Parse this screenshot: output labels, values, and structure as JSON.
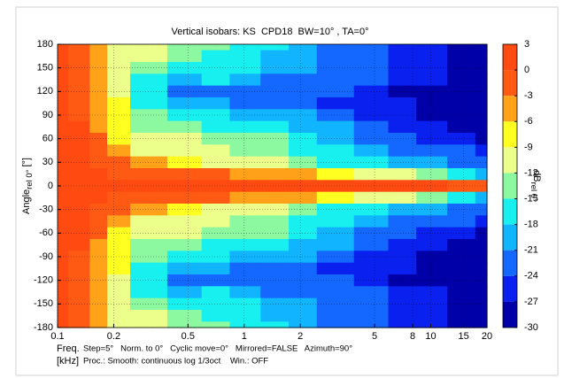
{
  "chart_data": {
    "type": "contour",
    "title": "Vertical isobars: KS  CPD18  BW=10° , TA=0°",
    "y_label": {
      "main": "Angle",
      "sub": "rel 0°",
      "unit": " [°]"
    },
    "colorbar_label": {
      "main": "dB",
      "sub": "rel 0°"
    },
    "x_label": {
      "line1": "Freq.",
      "line2": "[kHz]"
    },
    "notes": {
      "line1": "Step=5°   Norm. to 0°   Cyclic move=0°   Mirrored=FALSE   Azimuth=90°",
      "line2": "Proc.: Smooth: continuous log 1/3oct    Win.: OFF"
    },
    "x_log": true,
    "xlim": [
      0.1,
      20
    ],
    "xticks": [
      0.1,
      0.2,
      0.5,
      1,
      2,
      5,
      8,
      10,
      15,
      20
    ],
    "ylim": [
      -180,
      180
    ],
    "yticks": [
      180,
      150,
      120,
      90,
      60,
      30,
      0,
      -30,
      -60,
      -90,
      -120,
      -150,
      -180
    ],
    "grid": true,
    "clim": [
      -30,
      3
    ],
    "cticks": [
      3,
      0,
      -3,
      -6,
      -9,
      -12,
      -15,
      -18,
      -21,
      -24,
      -27,
      -30
    ],
    "colors": [
      "#ff4a12",
      "#ff5a14",
      "#ffa21a",
      "#ffff20",
      "#ecff8a",
      "#8cf8a0",
      "#18f0f0",
      "#10b4ff",
      "#1468ff",
      "#0a20ee",
      "#0000a8"
    ],
    "x": [
      0.1,
      0.13,
      0.17,
      0.2,
      0.3,
      0.5,
      0.7,
      1,
      1.5,
      2,
      3,
      5,
      7,
      10,
      15,
      20
    ],
    "y": [
      180,
      165,
      150,
      135,
      120,
      105,
      90,
      75,
      60,
      45,
      30,
      15,
      0,
      -15,
      -30,
      -45,
      -60,
      -75,
      -90,
      -105,
      -120,
      -135,
      -150,
      -165,
      -180
    ],
    "z": [
      [
        0,
        -1,
        -4,
        -10,
        -11,
        -13,
        -15,
        -16,
        -18,
        -20,
        -22,
        -24,
        -26,
        -27,
        -28,
        -29
      ],
      [
        0,
        -1,
        -4,
        -10,
        -12,
        -14,
        -16,
        -17,
        -19,
        -20,
        -22,
        -23,
        -26,
        -27,
        -28,
        -29
      ],
      [
        0,
        -1,
        -4,
        -10,
        -13,
        -16,
        -17,
        -18,
        -20,
        -21,
        -22,
        -24,
        -25,
        -27,
        -28,
        -29
      ],
      [
        0,
        -1,
        -4,
        -10,
        -17,
        -19,
        -18,
        -20,
        -22,
        -23,
        -22,
        -24,
        -27,
        -27,
        -29,
        -29
      ],
      [
        0,
        -1,
        -4,
        -10,
        -18,
        -22,
        -23,
        -22,
        -24,
        -24,
        -24,
        -26,
        -28,
        -28,
        -28,
        -29
      ],
      [
        0,
        -1,
        -4,
        -9,
        -17,
        -20,
        -20,
        -22,
        -22,
        -23,
        -25,
        -26,
        -27,
        -28,
        -29,
        -29
      ],
      [
        0,
        -1,
        -4,
        -9,
        -15,
        -17,
        -18,
        -19,
        -20,
        -21,
        -23,
        -25,
        -27,
        -28,
        -29,
        -29
      ],
      [
        0,
        0,
        -4,
        -9,
        -13,
        -14,
        -16,
        -16,
        -18,
        -19,
        -21,
        -24,
        -26,
        -27,
        -28,
        -29
      ],
      [
        0,
        0,
        -3,
        -8,
        -12,
        -11,
        -13,
        -14,
        -15,
        -17,
        -19,
        -22,
        -24,
        -25,
        -27,
        -28
      ],
      [
        0,
        0,
        -2,
        -6,
        -10,
        -12,
        -11,
        -13,
        -15,
        -17,
        -18,
        -20,
        -22,
        -22,
        -24,
        -26
      ],
      [
        0,
        0,
        -1,
        -3,
        -6,
        -9,
        -10,
        -11,
        -12,
        -14,
        -16,
        -18,
        -19,
        -20,
        -22,
        -24
      ],
      [
        0,
        0,
        0,
        -1,
        -2,
        -3,
        -3,
        -4,
        -5,
        -6,
        -8,
        -10,
        -12,
        -14,
        -17,
        -20
      ],
      [
        0,
        0,
        0,
        0,
        0,
        0,
        0,
        0,
        0,
        0,
        0,
        0,
        0,
        0,
        -1,
        -2
      ],
      [
        0,
        0,
        0,
        -1,
        -2,
        -3,
        -3,
        -4,
        -5,
        -6,
        -8,
        -10,
        -12,
        -14,
        -17,
        -20
      ],
      [
        0,
        0,
        -1,
        -3,
        -6,
        -9,
        -10,
        -11,
        -12,
        -14,
        -16,
        -18,
        -19,
        -20,
        -22,
        -24
      ],
      [
        0,
        0,
        -2,
        -6,
        -10,
        -12,
        -11,
        -13,
        -15,
        -17,
        -18,
        -20,
        -22,
        -22,
        -24,
        -26
      ],
      [
        0,
        0,
        -3,
        -8,
        -12,
        -11,
        -13,
        -14,
        -15,
        -17,
        -19,
        -22,
        -24,
        -25,
        -27,
        -28
      ],
      [
        0,
        0,
        -4,
        -9,
        -13,
        -14,
        -16,
        -16,
        -18,
        -19,
        -21,
        -24,
        -26,
        -27,
        -28,
        -29
      ],
      [
        0,
        -1,
        -4,
        -9,
        -15,
        -17,
        -18,
        -19,
        -20,
        -21,
        -23,
        -25,
        -27,
        -28,
        -29,
        -29
      ],
      [
        0,
        -1,
        -4,
        -9,
        -17,
        -20,
        -20,
        -22,
        -22,
        -23,
        -25,
        -26,
        -27,
        -28,
        -29,
        -29
      ],
      [
        0,
        -1,
        -4,
        -10,
        -18,
        -22,
        -23,
        -22,
        -24,
        -24,
        -24,
        -26,
        -28,
        -28,
        -28,
        -29
      ],
      [
        0,
        -1,
        -4,
        -10,
        -17,
        -19,
        -18,
        -20,
        -22,
        -23,
        -22,
        -24,
        -27,
        -27,
        -29,
        -29
      ],
      [
        0,
        -1,
        -4,
        -10,
        -13,
        -16,
        -17,
        -18,
        -20,
        -21,
        -22,
        -24,
        -25,
        -27,
        -28,
        -29
      ],
      [
        0,
        -1,
        -4,
        -10,
        -12,
        -14,
        -16,
        -17,
        -19,
        -20,
        -22,
        -23,
        -26,
        -27,
        -28,
        -29
      ],
      [
        0,
        -1,
        -4,
        -10,
        -11,
        -13,
        -15,
        -16,
        -18,
        -20,
        -22,
        -24,
        -26,
        -27,
        -28,
        -29
      ]
    ]
  }
}
